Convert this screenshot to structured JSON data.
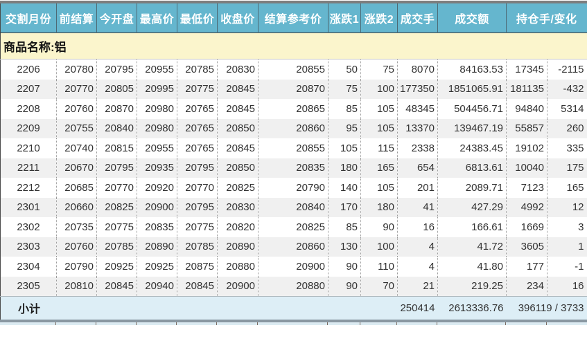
{
  "header": {
    "columns": [
      "交割月份",
      "前结算",
      "今开盘",
      "最高价",
      "最低价",
      "收盘价",
      "结算参考价",
      "涨跌1",
      "涨跌2",
      "成交手",
      "成交额",
      "持仓手/变化"
    ]
  },
  "product_row": {
    "label": "商品名称:铝"
  },
  "rows": [
    [
      "2206",
      "20780",
      "20795",
      "20955",
      "20785",
      "20830",
      "20855",
      "50",
      "75",
      "8070",
      "84163.53",
      "17345",
      "-2115"
    ],
    [
      "2207",
      "20770",
      "20805",
      "20995",
      "20775",
      "20845",
      "20870",
      "75",
      "100",
      "177350",
      "1851065.91",
      "181135",
      "-432"
    ],
    [
      "2208",
      "20760",
      "20870",
      "20980",
      "20765",
      "20845",
      "20865",
      "85",
      "105",
      "48345",
      "504456.71",
      "94840",
      "5314"
    ],
    [
      "2209",
      "20755",
      "20840",
      "20980",
      "20765",
      "20850",
      "20860",
      "95",
      "105",
      "13370",
      "139467.19",
      "55857",
      "260"
    ],
    [
      "2210",
      "20740",
      "20815",
      "20955",
      "20765",
      "20845",
      "20855",
      "105",
      "115",
      "2338",
      "24383.45",
      "19102",
      "335"
    ],
    [
      "2211",
      "20670",
      "20795",
      "20935",
      "20795",
      "20850",
      "20835",
      "180",
      "165",
      "654",
      "6813.61",
      "10040",
      "175"
    ],
    [
      "2212",
      "20685",
      "20770",
      "20920",
      "20770",
      "20825",
      "20790",
      "140",
      "105",
      "201",
      "2089.71",
      "7123",
      "165"
    ],
    [
      "2301",
      "20660",
      "20825",
      "20900",
      "20795",
      "20830",
      "20840",
      "170",
      "180",
      "41",
      "427.29",
      "4992",
      "12"
    ],
    [
      "2302",
      "20735",
      "20775",
      "20835",
      "20775",
      "20820",
      "20825",
      "85",
      "90",
      "16",
      "166.61",
      "1669",
      "3"
    ],
    [
      "2303",
      "20760",
      "20785",
      "20890",
      "20785",
      "20890",
      "20860",
      "130",
      "100",
      "4",
      "41.72",
      "3605",
      "1"
    ],
    [
      "2304",
      "20790",
      "20925",
      "20925",
      "20875",
      "20880",
      "20900",
      "90",
      "110",
      "4",
      "41.80",
      "177",
      "-1"
    ],
    [
      "2305",
      "20810",
      "20845",
      "20940",
      "20845",
      "20900",
      "20880",
      "90",
      "70",
      "21",
      "219.25",
      "234",
      "16"
    ]
  ],
  "subtotal": {
    "label": "小计",
    "volume": "250414",
    "turnover": "2613336.76",
    "open_interest_change": "396119 / 3733"
  },
  "colors": {
    "header_bg": "#65b6ce",
    "product_bg": "#fbf5cc",
    "row_alt_bg": "#f0f0f0",
    "subtotal_bg": "#ddeef6",
    "top_bar": "#7d7d7d",
    "bottom_bar": "#8a98a2",
    "text": "#323232"
  }
}
